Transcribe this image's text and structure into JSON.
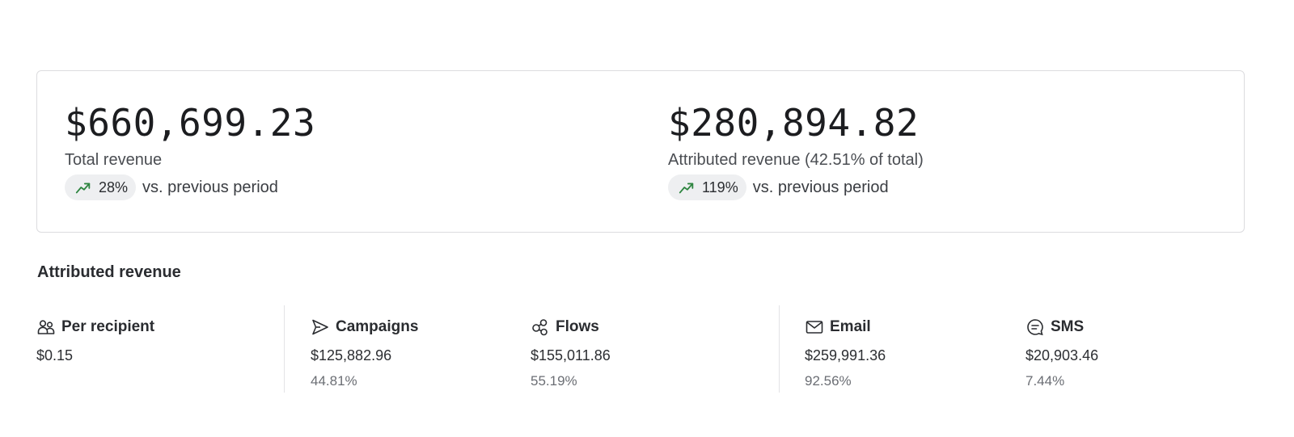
{
  "summary": {
    "total": {
      "value": "$660,699.23",
      "label": "Total revenue",
      "change": "28%",
      "change_suffix": "vs. previous period"
    },
    "attributed": {
      "value": "$280,894.82",
      "label": "Attributed revenue (42.51% of total)",
      "change": "119%",
      "change_suffix": "vs. previous period"
    },
    "trend_icon": "trend-up-icon",
    "trend_color": "#2e8540"
  },
  "attributed_section": {
    "title": "Attributed revenue",
    "metrics": [
      {
        "icon": "people-icon",
        "label": "Per recipient",
        "value": "$0.15",
        "percent": ""
      },
      {
        "icon": "send-icon",
        "label": "Campaigns",
        "value": "$125,882.96",
        "percent": "44.81%"
      },
      {
        "icon": "flows-icon",
        "label": "Flows",
        "value": "$155,011.86",
        "percent": "55.19%"
      },
      {
        "icon": "envelope-icon",
        "label": "Email",
        "value": "$259,991.36",
        "percent": "92.56%"
      },
      {
        "icon": "message-icon",
        "label": "SMS",
        "value": "$20,903.46",
        "percent": "7.44%"
      }
    ]
  }
}
